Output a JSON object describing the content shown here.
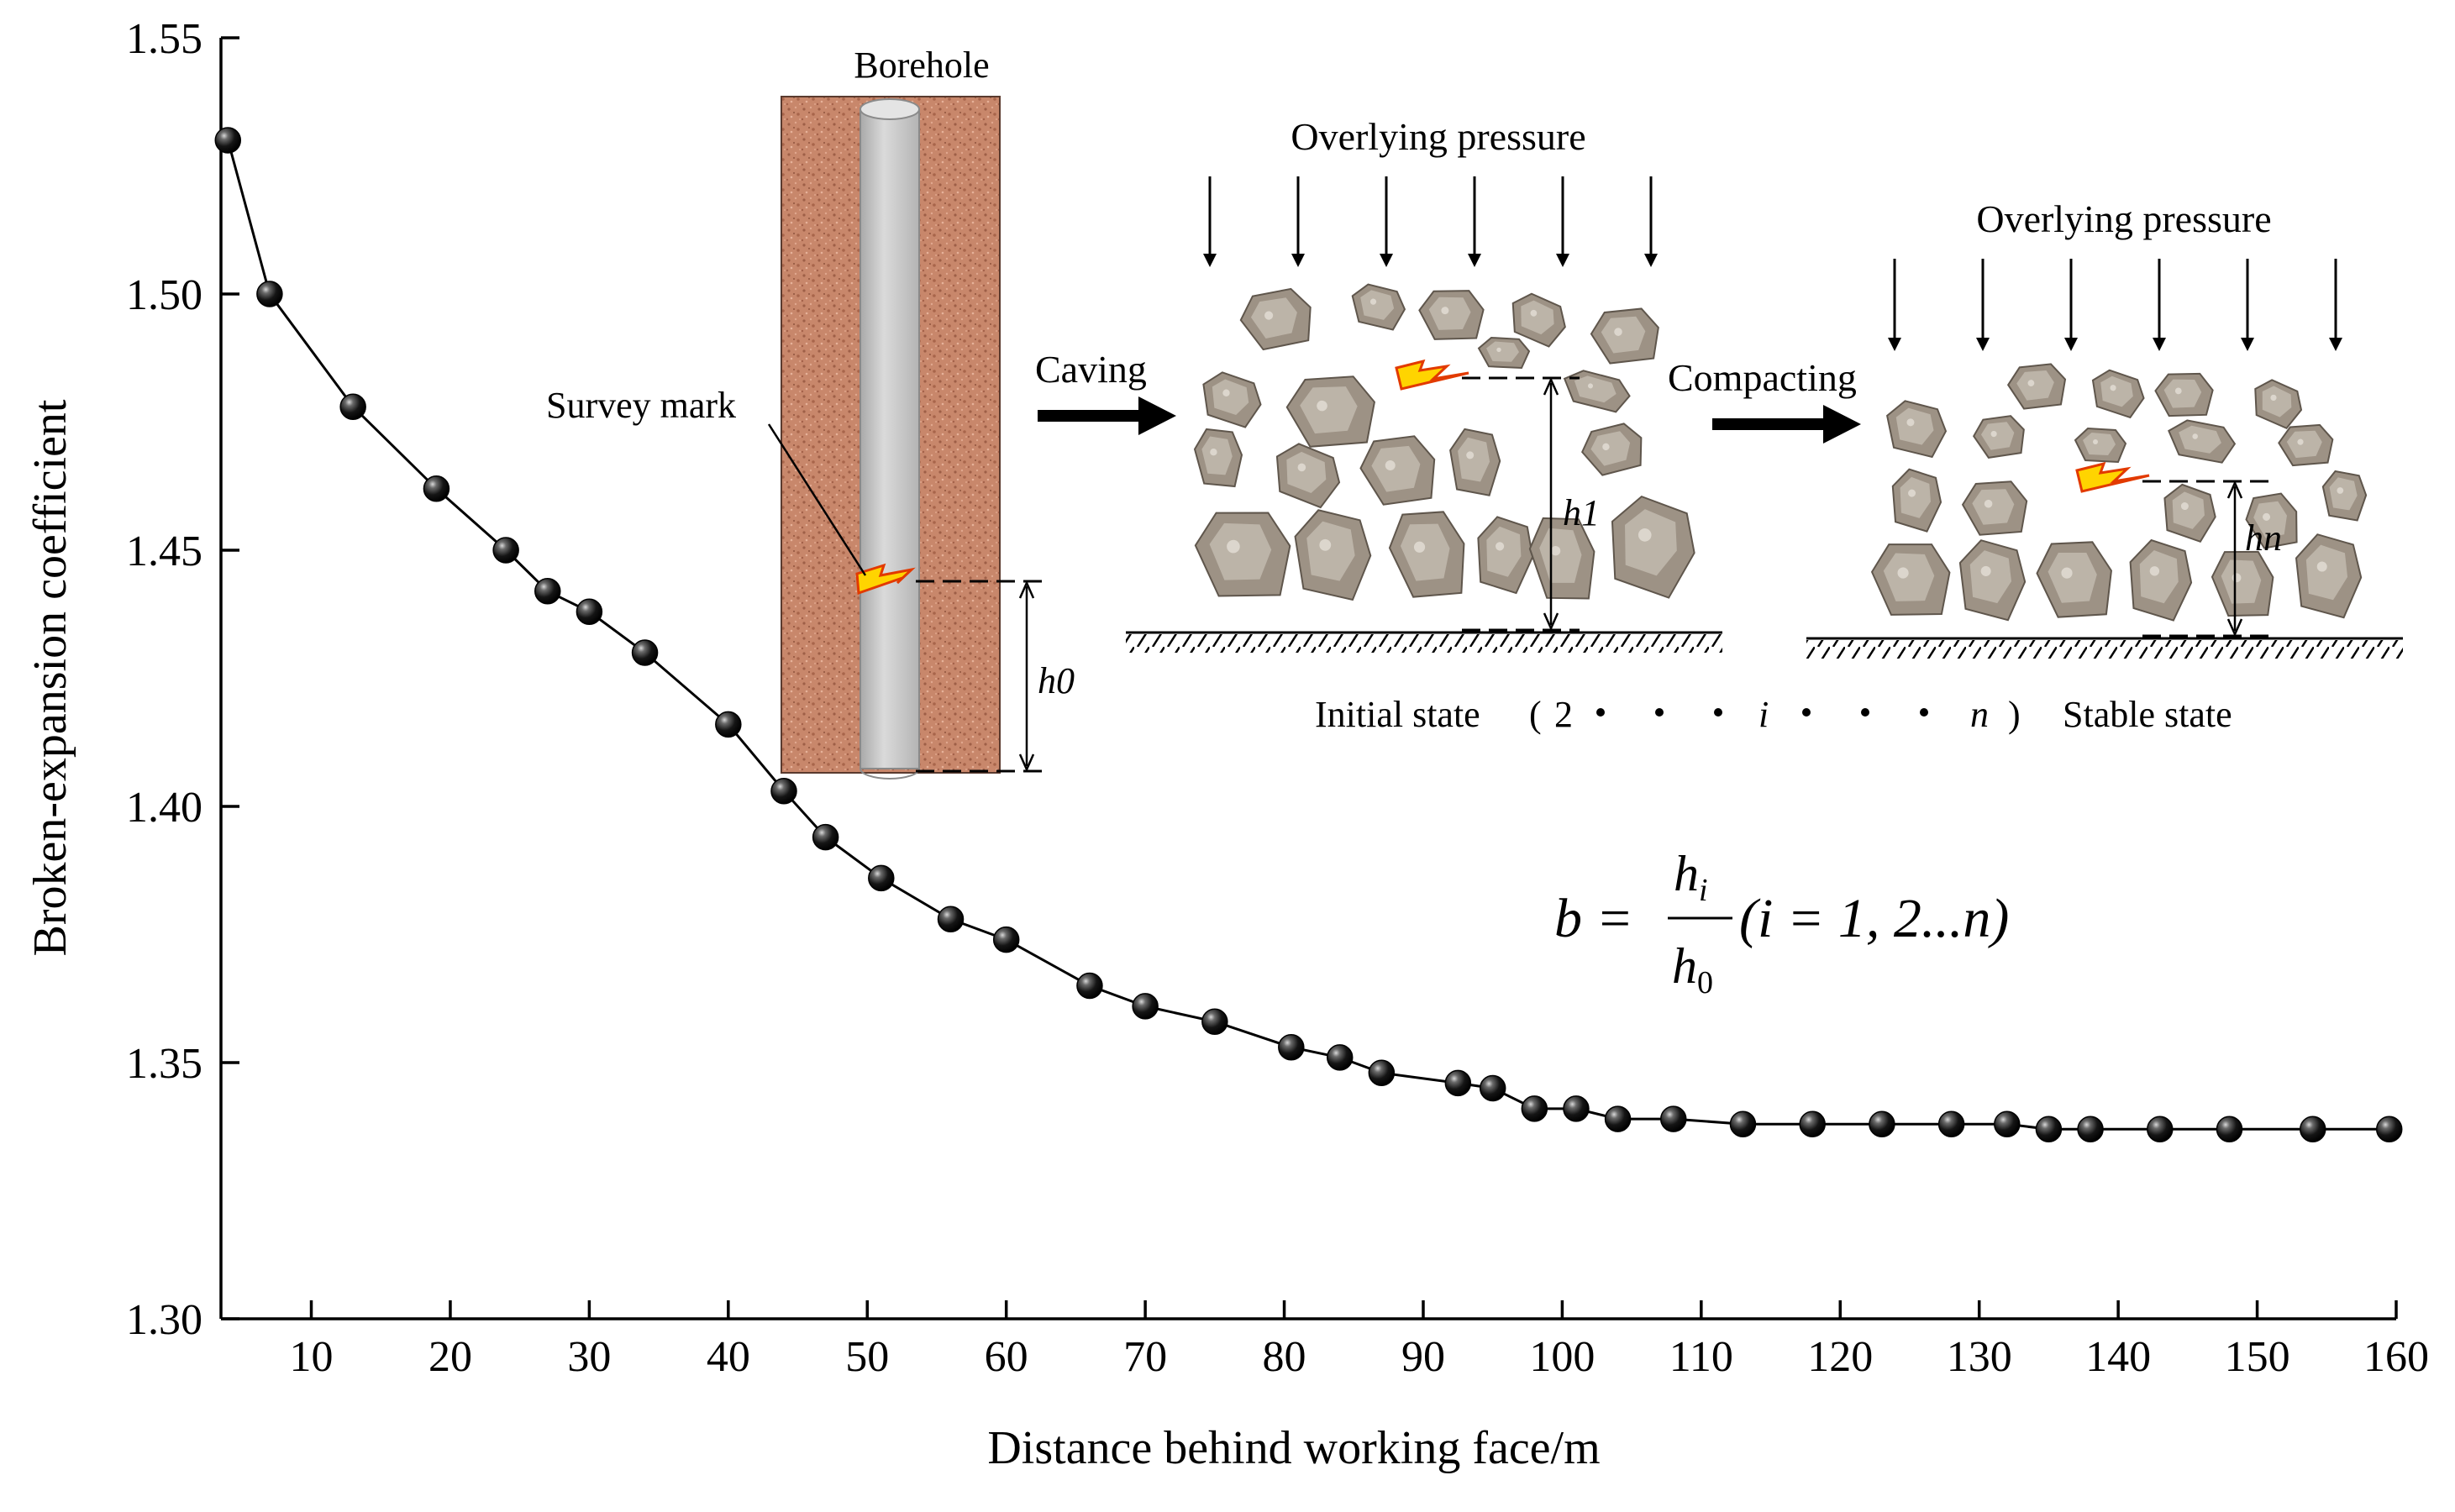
{
  "chart_data": {
    "type": "line",
    "xlabel": "Distance behind working face/m",
    "ylabel": "Broken-expansion coefficient",
    "xlim": [
      3.5,
      160
    ],
    "ylim": [
      1.3,
      1.55
    ],
    "xticks": [
      10,
      20,
      30,
      40,
      50,
      60,
      70,
      80,
      90,
      100,
      110,
      120,
      130,
      140,
      150,
      160
    ],
    "yticks": [
      1.3,
      1.35,
      1.4,
      1.45,
      1.5,
      1.55
    ],
    "grid": false,
    "legend": "none",
    "series": [
      {
        "marker": "sphere",
        "color": "#000000",
        "x": [
          4,
          7,
          13,
          19,
          24,
          27,
          30,
          34,
          40,
          44,
          47,
          51,
          56,
          60,
          66,
          70,
          75,
          80.5,
          84,
          87,
          92.5,
          95,
          98,
          101,
          104,
          108,
          113,
          118,
          123,
          128,
          132,
          135,
          138,
          143,
          148,
          154,
          159.5
        ],
        "y": [
          1.53,
          1.5,
          1.478,
          1.462,
          1.45,
          1.442,
          1.438,
          1.43,
          1.416,
          1.403,
          1.394,
          1.386,
          1.378,
          1.374,
          1.365,
          1.361,
          1.358,
          1.353,
          1.351,
          1.348,
          1.346,
          1.345,
          1.341,
          1.341,
          1.339,
          1.339,
          1.338,
          1.338,
          1.338,
          1.338,
          1.338,
          1.337,
          1.337,
          1.337,
          1.337,
          1.337,
          1.337
        ]
      }
    ]
  },
  "inset": {
    "borehole_label": "Borehole",
    "survey_mark_label": "Survey mark",
    "h0_label": "h0",
    "caving_label": "Caving",
    "compacting_label": "Compacting",
    "pressure_label_1": "Overlying pressure",
    "pressure_label_2": "Overlying pressure",
    "h1_label": "h1",
    "hn_label": "hn",
    "initial_state_label": "Initial state",
    "sequence_open": "(",
    "sequence_2": "2",
    "sequence_i": "i",
    "sequence_n": "n",
    "sequence_close": ")",
    "stable_state_label": "Stable state",
    "formula_lhs": "b =",
    "formula_num": "h",
    "formula_num_sub": "i",
    "formula_den": "h",
    "formula_den_sub": "0",
    "formula_rhs": "(i = 1, 2...n)",
    "colors": {
      "rock_matrix": "#c8876b",
      "borehole_fill": "#c9c9c9",
      "block_fill": "#9d9285",
      "block_light": "#c7bfb4",
      "mark_fill": "#ffd400",
      "mark_stroke": "#e23a00"
    }
  }
}
